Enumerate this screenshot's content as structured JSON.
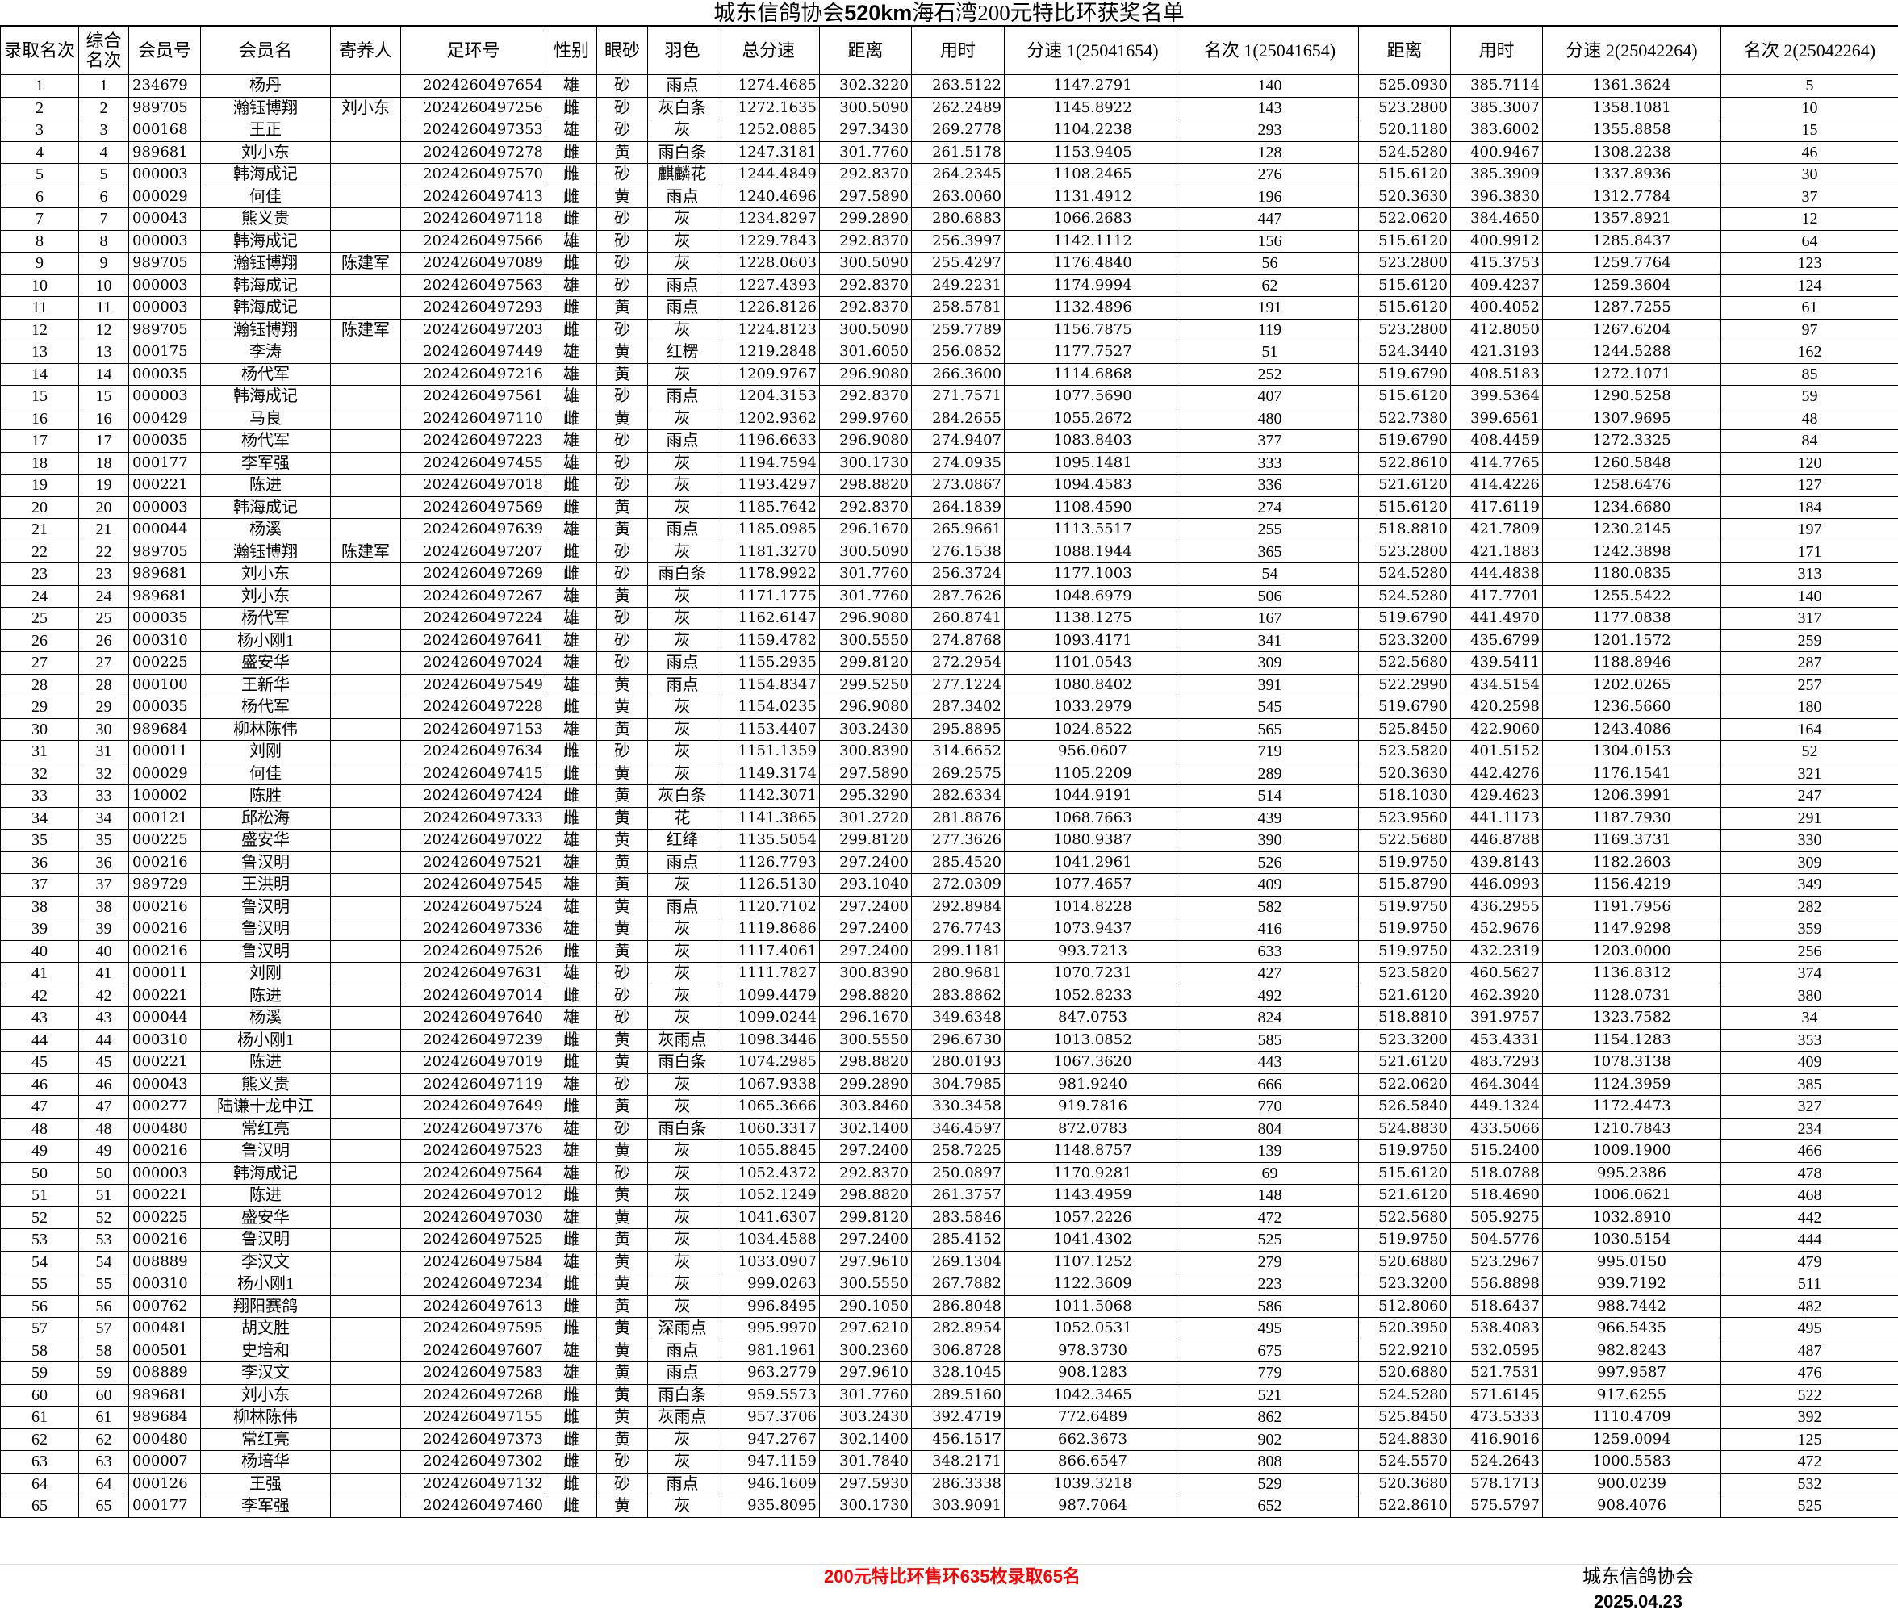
{
  "title_pre": "城东信鸽协会",
  "title_bold": "520km",
  "title_post": "海石湾200元特比环获奖名单",
  "headers": [
    "录取名次",
    "综合名次",
    "会员号",
    "会员名",
    "寄养人",
    "足环号",
    "性别",
    "眼砂",
    "羽色",
    "总分速",
    "距离",
    "用时",
    "分速 1(25041654)",
    "名次 1(25041654)",
    "距离",
    "用时",
    "分速 2(25042264)",
    "名次 2(25042264)"
  ],
  "rows": [
    [
      "1",
      "1",
      "234679",
      "杨丹",
      "",
      "2024260497654",
      "雄",
      "砂",
      "雨点",
      "1274.4685",
      "302.3220",
      "263.5122",
      "1147.2791",
      "140",
      "525.0930",
      "385.7114",
      "1361.3624",
      "5"
    ],
    [
      "2",
      "2",
      "989705",
      "瀚钰博翔",
      "刘小东",
      "2024260497256",
      "雌",
      "砂",
      "灰白条",
      "1272.1635",
      "300.5090",
      "262.2489",
      "1145.8922",
      "143",
      "523.2800",
      "385.3007",
      "1358.1081",
      "10"
    ],
    [
      "3",
      "3",
      "000168",
      "王正",
      "",
      "2024260497353",
      "雄",
      "砂",
      "灰",
      "1252.0885",
      "297.3430",
      "269.2778",
      "1104.2238",
      "293",
      "520.1180",
      "383.6002",
      "1355.8858",
      "15"
    ],
    [
      "4",
      "4",
      "989681",
      "刘小东",
      "",
      "2024260497278",
      "雌",
      "黄",
      "雨白条",
      "1247.3181",
      "301.7760",
      "261.5178",
      "1153.9405",
      "128",
      "524.5280",
      "400.9467",
      "1308.2238",
      "46"
    ],
    [
      "5",
      "5",
      "000003",
      "韩海成记",
      "",
      "2024260497570",
      "雌",
      "砂",
      "麒麟花",
      "1244.4849",
      "292.8370",
      "264.2345",
      "1108.2465",
      "276",
      "515.6120",
      "385.3909",
      "1337.8936",
      "30"
    ],
    [
      "6",
      "6",
      "000029",
      "何佳",
      "",
      "2024260497413",
      "雌",
      "黄",
      "雨点",
      "1240.4696",
      "297.5890",
      "263.0060",
      "1131.4912",
      "196",
      "520.3630",
      "396.3830",
      "1312.7784",
      "37"
    ],
    [
      "7",
      "7",
      "000043",
      "熊义贵",
      "",
      "2024260497118",
      "雌",
      "砂",
      "灰",
      "1234.8297",
      "299.2890",
      "280.6883",
      "1066.2683",
      "447",
      "522.0620",
      "384.4650",
      "1357.8921",
      "12"
    ],
    [
      "8",
      "8",
      "000003",
      "韩海成记",
      "",
      "2024260497566",
      "雄",
      "砂",
      "灰",
      "1229.7843",
      "292.8370",
      "256.3997",
      "1142.1112",
      "156",
      "515.6120",
      "400.9912",
      "1285.8437",
      "64"
    ],
    [
      "9",
      "9",
      "989705",
      "瀚钰博翔",
      "陈建军",
      "2024260497089",
      "雌",
      "砂",
      "灰",
      "1228.0603",
      "300.5090",
      "255.4297",
      "1176.4840",
      "56",
      "523.2800",
      "415.3753",
      "1259.7764",
      "123"
    ],
    [
      "10",
      "10",
      "000003",
      "韩海成记",
      "",
      "2024260497563",
      "雄",
      "砂",
      "雨点",
      "1227.4393",
      "292.8370",
      "249.2231",
      "1174.9994",
      "62",
      "515.6120",
      "409.4237",
      "1259.3604",
      "124"
    ],
    [
      "11",
      "11",
      "000003",
      "韩海成记",
      "",
      "2024260497293",
      "雌",
      "黄",
      "雨点",
      "1226.8126",
      "292.8370",
      "258.5781",
      "1132.4896",
      "191",
      "515.6120",
      "400.4052",
      "1287.7255",
      "61"
    ],
    [
      "12",
      "12",
      "989705",
      "瀚钰博翔",
      "陈建军",
      "2024260497203",
      "雌",
      "砂",
      "灰",
      "1224.8123",
      "300.5090",
      "259.7789",
      "1156.7875",
      "119",
      "523.2800",
      "412.8050",
      "1267.6204",
      "97"
    ],
    [
      "13",
      "13",
      "000175",
      "李涛",
      "",
      "2024260497449",
      "雄",
      "黄",
      "红楞",
      "1219.2848",
      "301.6050",
      "256.0852",
      "1177.7527",
      "51",
      "524.3440",
      "421.3193",
      "1244.5288",
      "162"
    ],
    [
      "14",
      "14",
      "000035",
      "杨代军",
      "",
      "2024260497216",
      "雄",
      "黄",
      "灰",
      "1209.9767",
      "296.9080",
      "266.3600",
      "1114.6868",
      "252",
      "519.6790",
      "408.5183",
      "1272.1071",
      "85"
    ],
    [
      "15",
      "15",
      "000003",
      "韩海成记",
      "",
      "2024260497561",
      "雄",
      "砂",
      "雨点",
      "1204.3153",
      "292.8370",
      "271.7571",
      "1077.5690",
      "407",
      "515.6120",
      "399.5364",
      "1290.5258",
      "59"
    ],
    [
      "16",
      "16",
      "000429",
      "马良",
      "",
      "2024260497110",
      "雌",
      "黄",
      "灰",
      "1202.9362",
      "299.9760",
      "284.2655",
      "1055.2672",
      "480",
      "522.7380",
      "399.6561",
      "1307.9695",
      "48"
    ],
    [
      "17",
      "17",
      "000035",
      "杨代军",
      "",
      "2024260497223",
      "雄",
      "砂",
      "雨点",
      "1196.6633",
      "296.9080",
      "274.9407",
      "1083.8403",
      "377",
      "519.6790",
      "408.4459",
      "1272.3325",
      "84"
    ],
    [
      "18",
      "18",
      "000177",
      "李军强",
      "",
      "2024260497455",
      "雄",
      "砂",
      "灰",
      "1194.7594",
      "300.1730",
      "274.0935",
      "1095.1481",
      "333",
      "522.8610",
      "414.7765",
      "1260.5848",
      "120"
    ],
    [
      "19",
      "19",
      "000221",
      "陈进",
      "",
      "2024260497018",
      "雌",
      "砂",
      "灰",
      "1193.4297",
      "298.8820",
      "273.0867",
      "1094.4583",
      "336",
      "521.6120",
      "414.4226",
      "1258.6476",
      "127"
    ],
    [
      "20",
      "20",
      "000003",
      "韩海成记",
      "",
      "2024260497569",
      "雌",
      "黄",
      "灰",
      "1185.7642",
      "292.8370",
      "264.1839",
      "1108.4590",
      "274",
      "515.6120",
      "417.6119",
      "1234.6680",
      "184"
    ],
    [
      "21",
      "21",
      "000044",
      "杨溪",
      "",
      "2024260497639",
      "雄",
      "黄",
      "雨点",
      "1185.0985",
      "296.1670",
      "265.9661",
      "1113.5517",
      "255",
      "518.8810",
      "421.7809",
      "1230.2145",
      "197"
    ],
    [
      "22",
      "22",
      "989705",
      "瀚钰博翔",
      "陈建军",
      "2024260497207",
      "雌",
      "砂",
      "灰",
      "1181.3270",
      "300.5090",
      "276.1538",
      "1088.1944",
      "365",
      "523.2800",
      "421.1883",
      "1242.3898",
      "171"
    ],
    [
      "23",
      "23",
      "989681",
      "刘小东",
      "",
      "2024260497269",
      "雌",
      "砂",
      "雨白条",
      "1178.9922",
      "301.7760",
      "256.3724",
      "1177.1003",
      "54",
      "524.5280",
      "444.4838",
      "1180.0835",
      "313"
    ],
    [
      "24",
      "24",
      "989681",
      "刘小东",
      "",
      "2024260497267",
      "雄",
      "黄",
      "灰",
      "1171.1775",
      "301.7760",
      "287.7626",
      "1048.6979",
      "506",
      "524.5280",
      "417.7701",
      "1255.5422",
      "140"
    ],
    [
      "25",
      "25",
      "000035",
      "杨代军",
      "",
      "2024260497224",
      "雄",
      "砂",
      "灰",
      "1162.6147",
      "296.9080",
      "260.8741",
      "1138.1275",
      "167",
      "519.6790",
      "441.4970",
      "1177.0838",
      "317"
    ],
    [
      "26",
      "26",
      "000310",
      "杨小刚1",
      "",
      "2024260497641",
      "雄",
      "砂",
      "灰",
      "1159.4782",
      "300.5550",
      "274.8768",
      "1093.4171",
      "341",
      "523.3200",
      "435.6799",
      "1201.1572",
      "259"
    ],
    [
      "27",
      "27",
      "000225",
      "盛安华",
      "",
      "2024260497024",
      "雄",
      "砂",
      "雨点",
      "1155.2935",
      "299.8120",
      "272.2954",
      "1101.0543",
      "309",
      "522.5680",
      "439.5411",
      "1188.8946",
      "287"
    ],
    [
      "28",
      "28",
      "000100",
      "王新华",
      "",
      "2024260497549",
      "雄",
      "黄",
      "雨点",
      "1154.8347",
      "299.5250",
      "277.1224",
      "1080.8402",
      "391",
      "522.2990",
      "434.5154",
      "1202.0265",
      "257"
    ],
    [
      "29",
      "29",
      "000035",
      "杨代军",
      "",
      "2024260497228",
      "雌",
      "黄",
      "灰",
      "1154.0235",
      "296.9080",
      "287.3402",
      "1033.2979",
      "545",
      "519.6790",
      "420.2598",
      "1236.5660",
      "180"
    ],
    [
      "30",
      "30",
      "989684",
      "柳林陈伟",
      "",
      "2024260497153",
      "雄",
      "黄",
      "灰",
      "1153.4407",
      "303.2430",
      "295.8895",
      "1024.8522",
      "565",
      "525.8450",
      "422.9060",
      "1243.4086",
      "164"
    ],
    [
      "31",
      "31",
      "000011",
      "刘刚",
      "",
      "2024260497634",
      "雌",
      "砂",
      "灰",
      "1151.1359",
      "300.8390",
      "314.6652",
      "956.0607",
      "719",
      "523.5820",
      "401.5152",
      "1304.0153",
      "52"
    ],
    [
      "32",
      "32",
      "000029",
      "何佳",
      "",
      "2024260497415",
      "雌",
      "黄",
      "灰",
      "1149.3174",
      "297.5890",
      "269.2575",
      "1105.2209",
      "289",
      "520.3630",
      "442.4276",
      "1176.1541",
      "321"
    ],
    [
      "33",
      "33",
      "100002",
      "陈胜",
      "",
      "2024260497424",
      "雌",
      "黄",
      "灰白条",
      "1142.3071",
      "295.3290",
      "282.6334",
      "1044.9191",
      "514",
      "518.1030",
      "429.4623",
      "1206.3991",
      "247"
    ],
    [
      "34",
      "34",
      "000121",
      "邱松海",
      "",
      "2024260497333",
      "雌",
      "黄",
      "花",
      "1141.3865",
      "301.2720",
      "281.8876",
      "1068.7663",
      "439",
      "523.9560",
      "441.1173",
      "1187.7930",
      "291"
    ],
    [
      "35",
      "35",
      "000225",
      "盛安华",
      "",
      "2024260497022",
      "雄",
      "黄",
      "红绛",
      "1135.5054",
      "299.8120",
      "277.3626",
      "1080.9387",
      "390",
      "522.5680",
      "446.8788",
      "1169.3731",
      "330"
    ],
    [
      "36",
      "36",
      "000216",
      "鲁汉明",
      "",
      "2024260497521",
      "雄",
      "黄",
      "雨点",
      "1126.7793",
      "297.2400",
      "285.4520",
      "1041.2961",
      "526",
      "519.9750",
      "439.8143",
      "1182.2603",
      "309"
    ],
    [
      "37",
      "37",
      "989729",
      "王洪明",
      "",
      "2024260497545",
      "雄",
      "黄",
      "灰",
      "1126.5130",
      "293.1040",
      "272.0309",
      "1077.4657",
      "409",
      "515.8790",
      "446.0993",
      "1156.4219",
      "349"
    ],
    [
      "38",
      "38",
      "000216",
      "鲁汉明",
      "",
      "2024260497524",
      "雄",
      "黄",
      "雨点",
      "1120.7102",
      "297.2400",
      "292.8984",
      "1014.8228",
      "582",
      "519.9750",
      "436.2955",
      "1191.7956",
      "282"
    ],
    [
      "39",
      "39",
      "000216",
      "鲁汉明",
      "",
      "2024260497336",
      "雄",
      "黄",
      "灰",
      "1119.8686",
      "297.2400",
      "276.7743",
      "1073.9437",
      "416",
      "519.9750",
      "452.9676",
      "1147.9298",
      "359"
    ],
    [
      "40",
      "40",
      "000216",
      "鲁汉明",
      "",
      "2024260497526",
      "雌",
      "黄",
      "灰",
      "1117.4061",
      "297.2400",
      "299.1181",
      "993.7213",
      "633",
      "519.9750",
      "432.2319",
      "1203.0000",
      "256"
    ],
    [
      "41",
      "41",
      "000011",
      "刘刚",
      "",
      "2024260497631",
      "雄",
      "砂",
      "灰",
      "1111.7827",
      "300.8390",
      "280.9681",
      "1070.7231",
      "427",
      "523.5820",
      "460.5627",
      "1136.8312",
      "374"
    ],
    [
      "42",
      "42",
      "000221",
      "陈进",
      "",
      "2024260497014",
      "雌",
      "砂",
      "灰",
      "1099.4479",
      "298.8820",
      "283.8862",
      "1052.8233",
      "492",
      "521.6120",
      "462.3920",
      "1128.0731",
      "380"
    ],
    [
      "43",
      "43",
      "000044",
      "杨溪",
      "",
      "2024260497640",
      "雄",
      "砂",
      "灰",
      "1099.0244",
      "296.1670",
      "349.6348",
      "847.0753",
      "824",
      "518.8810",
      "391.9757",
      "1323.7582",
      "34"
    ],
    [
      "44",
      "44",
      "000310",
      "杨小刚1",
      "",
      "2024260497239",
      "雌",
      "黄",
      "灰雨点",
      "1098.3446",
      "300.5550",
      "296.6730",
      "1013.0852",
      "585",
      "523.3200",
      "453.4331",
      "1154.1283",
      "353"
    ],
    [
      "45",
      "45",
      "000221",
      "陈进",
      "",
      "2024260497019",
      "雌",
      "黄",
      "雨白条",
      "1074.2985",
      "298.8820",
      "280.0193",
      "1067.3620",
      "443",
      "521.6120",
      "483.7293",
      "1078.3138",
      "409"
    ],
    [
      "46",
      "46",
      "000043",
      "熊义贵",
      "",
      "2024260497119",
      "雄",
      "砂",
      "灰",
      "1067.9338",
      "299.2890",
      "304.7985",
      "981.9240",
      "666",
      "522.0620",
      "464.3044",
      "1124.3959",
      "385"
    ],
    [
      "47",
      "47",
      "000277",
      "陆谦十龙中江",
      "",
      "2024260497649",
      "雌",
      "黄",
      "灰",
      "1065.3666",
      "303.8460",
      "330.3458",
      "919.7816",
      "770",
      "526.5840",
      "449.1324",
      "1172.4473",
      "327"
    ],
    [
      "48",
      "48",
      "000480",
      "常红亮",
      "",
      "2024260497376",
      "雄",
      "砂",
      "雨白条",
      "1060.3317",
      "302.1400",
      "346.4597",
      "872.0783",
      "804",
      "524.8830",
      "433.5066",
      "1210.7843",
      "234"
    ],
    [
      "49",
      "49",
      "000216",
      "鲁汉明",
      "",
      "2024260497523",
      "雄",
      "黄",
      "灰",
      "1055.8845",
      "297.2400",
      "258.7225",
      "1148.8757",
      "139",
      "519.9750",
      "515.2400",
      "1009.1900",
      "466"
    ],
    [
      "50",
      "50",
      "000003",
      "韩海成记",
      "",
      "2024260497564",
      "雄",
      "砂",
      "灰",
      "1052.4372",
      "292.8370",
      "250.0897",
      "1170.9281",
      "69",
      "515.6120",
      "518.0788",
      "995.2386",
      "478"
    ],
    [
      "51",
      "51",
      "000221",
      "陈进",
      "",
      "2024260497012",
      "雌",
      "黄",
      "灰",
      "1052.1249",
      "298.8820",
      "261.3757",
      "1143.4959",
      "148",
      "521.6120",
      "518.4690",
      "1006.0621",
      "468"
    ],
    [
      "52",
      "52",
      "000225",
      "盛安华",
      "",
      "2024260497030",
      "雄",
      "黄",
      "灰",
      "1041.6307",
      "299.8120",
      "283.5846",
      "1057.2226",
      "472",
      "522.5680",
      "505.9275",
      "1032.8910",
      "442"
    ],
    [
      "53",
      "53",
      "000216",
      "鲁汉明",
      "",
      "2024260497525",
      "雌",
      "黄",
      "灰",
      "1034.4588",
      "297.2400",
      "285.4152",
      "1041.4302",
      "525",
      "519.9750",
      "504.5776",
      "1030.5154",
      "444"
    ],
    [
      "54",
      "54",
      "008889",
      "李汉文",
      "",
      "2024260497584",
      "雄",
      "黄",
      "灰",
      "1033.0907",
      "297.9610",
      "269.1304",
      "1107.1252",
      "279",
      "520.6880",
      "523.2967",
      "995.0150",
      "479"
    ],
    [
      "55",
      "55",
      "000310",
      "杨小刚1",
      "",
      "2024260497234",
      "雌",
      "黄",
      "灰",
      "999.0263",
      "300.5550",
      "267.7882",
      "1122.3609",
      "223",
      "523.3200",
      "556.8898",
      "939.7192",
      "511"
    ],
    [
      "56",
      "56",
      "000762",
      "翔阳赛鸽",
      "",
      "2024260497613",
      "雌",
      "黄",
      "灰",
      "996.8495",
      "290.1050",
      "286.8048",
      "1011.5068",
      "586",
      "512.8060",
      "518.6437",
      "988.7442",
      "482"
    ],
    [
      "57",
      "57",
      "000481",
      "胡文胜",
      "",
      "2024260497595",
      "雌",
      "黄",
      "深雨点",
      "995.9970",
      "297.6210",
      "282.8954",
      "1052.0531",
      "495",
      "520.3950",
      "538.4083",
      "966.5435",
      "495"
    ],
    [
      "58",
      "58",
      "000501",
      "史培和",
      "",
      "2024260497607",
      "雄",
      "黄",
      "雨点",
      "981.1961",
      "300.2360",
      "306.8728",
      "978.3730",
      "675",
      "522.9210",
      "532.0595",
      "982.8243",
      "487"
    ],
    [
      "59",
      "59",
      "008889",
      "李汉文",
      "",
      "2024260497583",
      "雄",
      "黄",
      "雨点",
      "963.2779",
      "297.9610",
      "328.1045",
      "908.1283",
      "779",
      "520.6880",
      "521.7531",
      "997.9587",
      "476"
    ],
    [
      "60",
      "60",
      "989681",
      "刘小东",
      "",
      "2024260497268",
      "雌",
      "黄",
      "雨白条",
      "959.5573",
      "301.7760",
      "289.5160",
      "1042.3465",
      "521",
      "524.5280",
      "571.6145",
      "917.6255",
      "522"
    ],
    [
      "61",
      "61",
      "989684",
      "柳林陈伟",
      "",
      "2024260497155",
      "雌",
      "黄",
      "灰雨点",
      "957.3706",
      "303.2430",
      "392.4719",
      "772.6489",
      "862",
      "525.8450",
      "473.5333",
      "1110.4709",
      "392"
    ],
    [
      "62",
      "62",
      "000480",
      "常红亮",
      "",
      "2024260497373",
      "雌",
      "黄",
      "灰",
      "947.2767",
      "302.1400",
      "456.1517",
      "662.3673",
      "902",
      "524.8830",
      "416.9016",
      "1259.0094",
      "125"
    ],
    [
      "63",
      "63",
      "000007",
      "杨培华",
      "",
      "2024260497302",
      "雌",
      "砂",
      "灰",
      "947.1159",
      "301.7840",
      "348.2171",
      "866.6547",
      "808",
      "524.5570",
      "524.2643",
      "1000.5583",
      "472"
    ],
    [
      "64",
      "64",
      "000126",
      "王强",
      "",
      "2024260497132",
      "雌",
      "砂",
      "雨点",
      "946.1609",
      "297.5930",
      "286.3338",
      "1039.3218",
      "529",
      "520.3680",
      "578.1713",
      "900.0239",
      "532"
    ],
    [
      "65",
      "65",
      "000177",
      "李军强",
      "",
      "2024260497460",
      "雌",
      "黄",
      "灰",
      "935.8095",
      "300.1730",
      "303.9091",
      "987.7064",
      "652",
      "522.8610",
      "575.5797",
      "908.4076",
      "525"
    ]
  ],
  "footer": {
    "note": "200元特比环售环635枚录取65名",
    "org": "城东信鸽协会",
    "date": "2025.04.23"
  },
  "colors": {
    "note": "#ff0000"
  }
}
